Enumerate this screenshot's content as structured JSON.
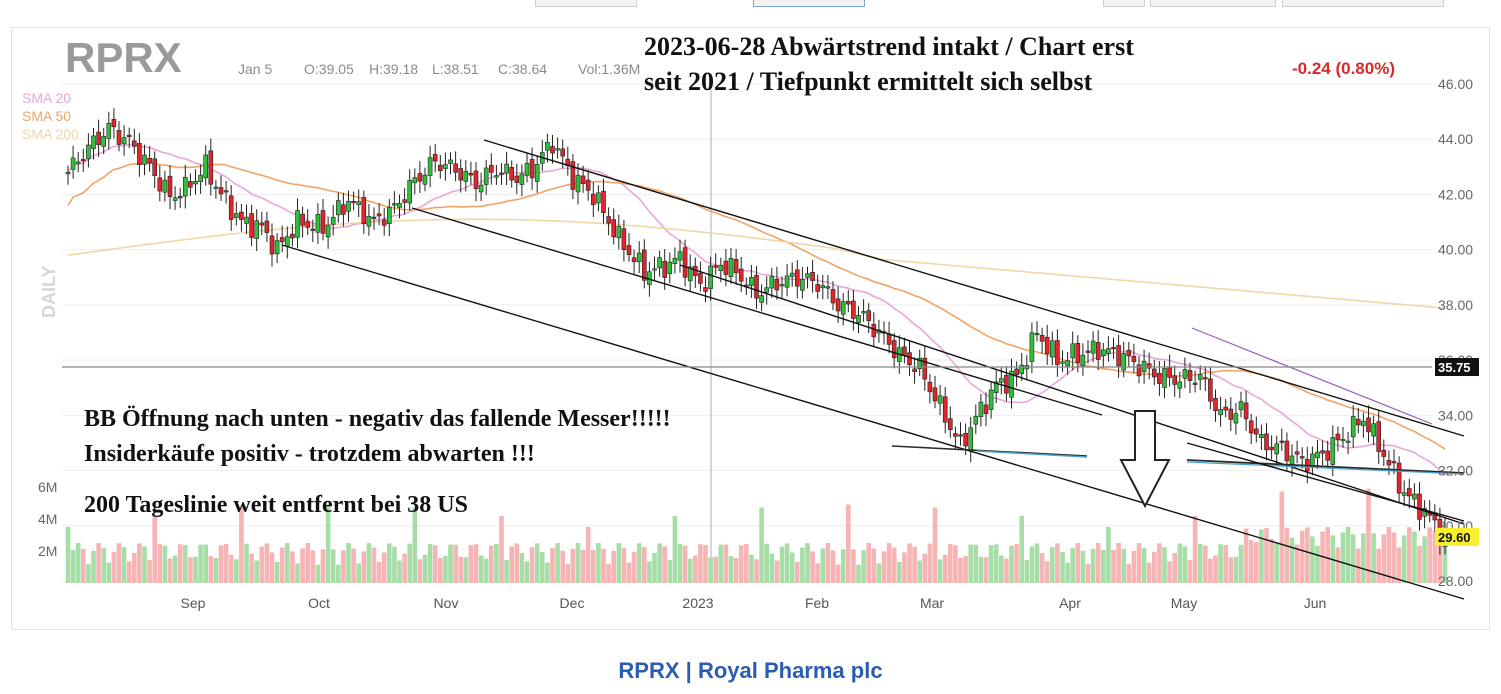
{
  "chart_data": {
    "type": "candlestick",
    "symbol": "RPRX",
    "timeframe_label": "DAILY",
    "header": {
      "date": "Jan 5",
      "open": "O:39.05",
      "high": "H:39.18",
      "low": "L:38.51",
      "close": "C:38.64",
      "volume": "Vol:1.36M",
      "change": "-0.24 (0.80%)"
    },
    "indicators": [
      {
        "name": "SMA 20",
        "color": "#e9a6d8"
      },
      {
        "name": "SMA 50",
        "color": "#f2a466"
      },
      {
        "name": "SMA 200",
        "color": "#f1d6a6"
      }
    ],
    "annotations": {
      "title_line1": "2023-06-28  Abwärtstrend intakt / Chart erst",
      "title_line2": "seit 2021 / Tiefpunkt ermittelt sich selbst",
      "note1": "BB Öffnung nach unten - negativ das fallende Messer!!!!!",
      "note2": "Insiderkäufe positiv  - trotzdem abwarten !!!",
      "note3": "200 Tageslinie weit entfernt  bei 38 US"
    },
    "y_axis": {
      "ticks": [
        "46.00",
        "44.00",
        "42.00",
        "40.00",
        "38.00",
        "36.00",
        "34.00",
        "32.00",
        "30.00",
        "28.00"
      ],
      "ylim": [
        28,
        46
      ],
      "reference_price": "35.75",
      "last_price": "29.60"
    },
    "volume_axis": {
      "ticks": [
        "6M",
        "4M",
        "2M"
      ]
    },
    "x_axis": {
      "labels": [
        "Sep",
        "Oct",
        "Nov",
        "Dec",
        "2023",
        "Feb",
        "Mar",
        "Apr",
        "May",
        "Jun"
      ]
    },
    "close_anchors": [
      [
        0,
        42.8
      ],
      [
        3,
        43.5
      ],
      [
        8,
        44.4
      ],
      [
        12,
        43.9
      ],
      [
        16,
        43.0
      ],
      [
        20,
        41.9
      ],
      [
        23,
        42.2
      ],
      [
        27,
        43.0
      ],
      [
        30,
        42.0
      ],
      [
        34,
        41.0
      ],
      [
        38,
        40.8
      ],
      [
        41,
        40.0
      ],
      [
        45,
        41.0
      ],
      [
        50,
        40.8
      ],
      [
        55,
        41.8
      ],
      [
        60,
        41.0
      ],
      [
        64,
        41.5
      ],
      [
        68,
        42.5
      ],
      [
        72,
        43.2
      ],
      [
        76,
        42.9
      ],
      [
        80,
        42.4
      ],
      [
        84,
        42.9
      ],
      [
        88,
        42.6
      ],
      [
        91,
        42.9
      ],
      [
        95,
        43.9
      ],
      [
        99,
        42.6
      ],
      [
        103,
        42.0
      ],
      [
        108,
        40.4
      ],
      [
        113,
        39.2
      ],
      [
        117,
        39.4
      ],
      [
        120,
        39.7
      ],
      [
        124,
        38.7
      ],
      [
        128,
        39.5
      ],
      [
        131,
        39.2
      ],
      [
        135,
        38.4
      ],
      [
        139,
        38.8
      ],
      [
        143,
        39.0
      ],
      [
        147,
        38.8
      ],
      [
        151,
        38.0
      ],
      [
        155,
        37.7
      ],
      [
        159,
        37.0
      ],
      [
        163,
        36.2
      ],
      [
        167,
        35.7
      ],
      [
        171,
        34.3
      ],
      [
        175,
        32.9
      ],
      [
        178,
        33.9
      ],
      [
        182,
        35.1
      ],
      [
        186,
        35.4
      ],
      [
        190,
        37.0
      ],
      [
        194,
        36.0
      ],
      [
        198,
        36.2
      ],
      [
        202,
        36.4
      ],
      [
        206,
        36.2
      ],
      [
        210,
        35.8
      ],
      [
        214,
        35.4
      ],
      [
        218,
        35.3
      ],
      [
        222,
        35.4
      ],
      [
        226,
        34.0
      ],
      [
        230,
        34.2
      ],
      [
        234,
        33.0
      ],
      [
        238,
        32.8
      ],
      [
        242,
        32.3
      ],
      [
        246,
        32.6
      ],
      [
        250,
        33.2
      ],
      [
        254,
        33.9
      ],
      [
        258,
        32.6
      ],
      [
        262,
        31.2
      ],
      [
        266,
        30.5
      ],
      [
        270,
        29.6
      ]
    ]
  },
  "footer": {
    "ticker": "RPRX",
    "separator": "|",
    "company": "Royal Pharma plc"
  }
}
